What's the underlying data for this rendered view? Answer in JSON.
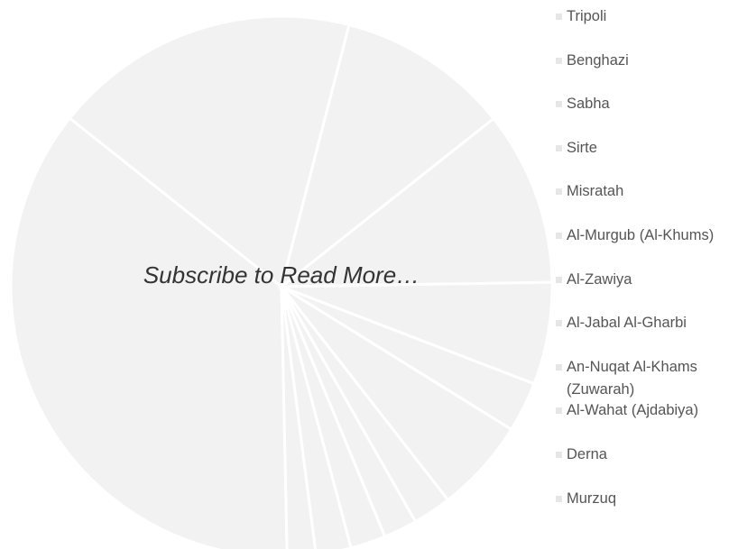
{
  "chart_data": {
    "type": "pie",
    "overlay": "Subscribe to Read More…",
    "categories": [
      "Tripoli",
      "Benghazi",
      "Sabha",
      "Sirte",
      "Misratah",
      "Al-Murgub (Al-Khums)",
      "Al-Zawiya",
      "Al-Jabal Al-Gharbi",
      "An-Nuqat Al-Khams (Zuwarah)",
      "Al-Wahat (Ajdabiya)",
      "Derna",
      "Murzuq"
    ],
    "values": [
      36,
      18.3,
      10.3,
      10.4,
      6.1,
      3,
      5.6,
      2.3,
      2,
      2.1,
      2.1,
      1.7
    ],
    "color": "#f2f2f2",
    "legend": "right"
  }
}
